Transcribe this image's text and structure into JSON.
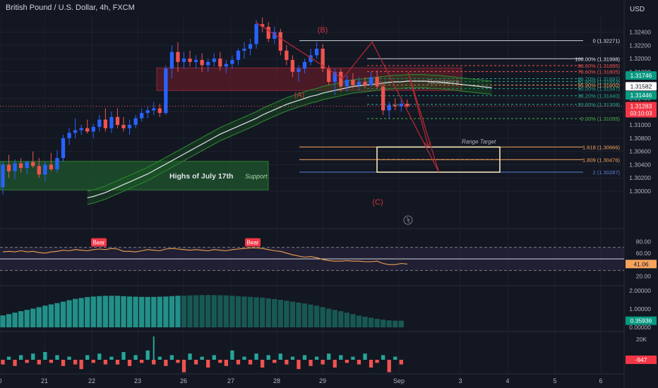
{
  "header": {
    "symbol_title": "British Pound / U.S. Dollar, 4h, FXCM",
    "currency": "USD"
  },
  "colors": {
    "background": "#131722",
    "up": "#2962ff",
    "down": "#ef5350",
    "grid": "#1e222d",
    "axis_text": "#b2b5be",
    "fib_green": "#22ab94",
    "fib_red": "#ef5350",
    "ext_orange": "#f7a35c",
    "wave_red": "#b22833",
    "support_green": "#1b5e20",
    "resistance_red": "#7a1f2b",
    "rsi_line": "#f0a050",
    "hist_teal": "#26a69a",
    "hist_dark": "#1b6f64",
    "vol_up": "#26a69a",
    "vol_down": "#ef5350"
  },
  "chart_data": [
    {
      "type": "candlestick",
      "name": "main",
      "y_axis": {
        "min": 1.295,
        "max": 1.3265,
        "ticks": [
          "1.32400",
          "1.32200",
          "1.32000",
          "1.31800",
          "1.31600",
          "1.31400",
          "1.31200",
          "1.31000",
          "1.30800",
          "1.30600",
          "1.30400",
          "1.30200",
          "1.30000"
        ]
      },
      "x_axis": {
        "ticks": [
          "0",
          "21",
          "22",
          "23",
          "26",
          "27",
          "28",
          "29",
          "Sep",
          "3",
          "4",
          "5",
          "6"
        ]
      },
      "candles": [
        [
          1.3006,
          1.3045,
          1.2995,
          1.304
        ],
        [
          1.304,
          1.3055,
          1.302,
          1.303
        ],
        [
          1.303,
          1.3048,
          1.3018,
          1.3042
        ],
        [
          1.3042,
          1.305,
          1.3028,
          1.3035
        ],
        [
          1.3035,
          1.3046,
          1.3025,
          1.3044
        ],
        [
          1.3044,
          1.306,
          1.3035,
          1.3038
        ],
        [
          1.3038,
          1.305,
          1.302,
          1.3025
        ],
        [
          1.3025,
          1.3045,
          1.3015,
          1.304
        ],
        [
          1.304,
          1.3058,
          1.303,
          1.3033
        ],
        [
          1.3033,
          1.3062,
          1.3028,
          1.305
        ],
        [
          1.305,
          1.3085,
          1.3045,
          1.308
        ],
        [
          1.308,
          1.3095,
          1.307,
          1.3088
        ],
        [
          1.3088,
          1.311,
          1.308,
          1.3092
        ],
        [
          1.3092,
          1.31,
          1.3085,
          1.3095
        ],
        [
          1.3095,
          1.3108,
          1.3087,
          1.309
        ],
        [
          1.309,
          1.3102,
          1.308,
          1.3097
        ],
        [
          1.3097,
          1.3115,
          1.309,
          1.3108
        ],
        [
          1.3108,
          1.3125,
          1.309,
          1.3095
        ],
        [
          1.3095,
          1.312,
          1.3088,
          1.3112
        ],
        [
          1.3112,
          1.3125,
          1.3095,
          1.31
        ],
        [
          1.31,
          1.3112,
          1.309,
          1.3095
        ],
        [
          1.3095,
          1.3108,
          1.3085,
          1.31
        ],
        [
          1.31,
          1.3115,
          1.3095,
          1.311
        ],
        [
          1.311,
          1.3125,
          1.3105,
          1.3118
        ],
        [
          1.3118,
          1.3128,
          1.311,
          1.3122
        ],
        [
          1.3122,
          1.3135,
          1.3115,
          1.3125
        ],
        [
          1.3125,
          1.3132,
          1.3112,
          1.3118
        ],
        [
          1.3118,
          1.319,
          1.3115,
          1.3185
        ],
        [
          1.3185,
          1.322,
          1.317,
          1.321
        ],
        [
          1.321,
          1.3225,
          1.318,
          1.3195
        ],
        [
          1.3195,
          1.321,
          1.3185,
          1.32
        ],
        [
          1.32,
          1.3212,
          1.3188,
          1.3195
        ],
        [
          1.3195,
          1.3205,
          1.3185,
          1.3198
        ],
        [
          1.3198,
          1.3208,
          1.318,
          1.319
        ],
        [
          1.319,
          1.32,
          1.318,
          1.3195
        ],
        [
          1.3195,
          1.3208,
          1.3188,
          1.32
        ],
        [
          1.32,
          1.321,
          1.3182,
          1.3188
        ],
        [
          1.3188,
          1.3198,
          1.3178,
          1.3192
        ],
        [
          1.3192,
          1.3205,
          1.3185,
          1.3198
        ],
        [
          1.3198,
          1.3215,
          1.319,
          1.3212
        ],
        [
          1.3212,
          1.3225,
          1.32,
          1.3215
        ],
        [
          1.3215,
          1.323,
          1.3205,
          1.3222
        ],
        [
          1.3222,
          1.3258,
          1.3215,
          1.3252
        ],
        [
          1.3252,
          1.3262,
          1.324,
          1.3248
        ],
        [
          1.3248,
          1.3255,
          1.3225,
          1.323
        ],
        [
          1.323,
          1.3248,
          1.3222,
          1.324
        ],
        [
          1.324,
          1.3245,
          1.3205,
          1.3212
        ],
        [
          1.3212,
          1.322,
          1.319,
          1.3198
        ],
        [
          1.3198,
          1.3205,
          1.3172,
          1.318
        ],
        [
          1.318,
          1.319,
          1.3165,
          1.3185
        ],
        [
          1.3185,
          1.32,
          1.3178,
          1.3195
        ],
        [
          1.3195,
          1.3215,
          1.319,
          1.3205
        ],
        [
          1.3205,
          1.3225,
          1.32,
          1.3215
        ],
        [
          1.3215,
          1.3222,
          1.318,
          1.3185
        ],
        [
          1.3185,
          1.319,
          1.316,
          1.3165
        ],
        [
          1.3165,
          1.3185,
          1.3145,
          1.318
        ],
        [
          1.318,
          1.3185,
          1.315,
          1.3158
        ],
        [
          1.3158,
          1.3175,
          1.315,
          1.3168
        ],
        [
          1.3168,
          1.3178,
          1.3155,
          1.316
        ],
        [
          1.316,
          1.3172,
          1.3152,
          1.3165
        ],
        [
          1.3165,
          1.3172,
          1.3155,
          1.316
        ],
        [
          1.316,
          1.318,
          1.3158,
          1.3172
        ],
        [
          1.3172,
          1.3182,
          1.3155,
          1.3158
        ],
        [
          1.3158,
          1.3165,
          1.3115,
          1.3122
        ],
        [
          1.3122,
          1.3135,
          1.311,
          1.313
        ],
        [
          1.313,
          1.314,
          1.3122,
          1.3128
        ],
        [
          1.3128,
          1.3138,
          1.312,
          1.3132
        ],
        [
          1.3132,
          1.3138,
          1.3126,
          1.3128
        ]
      ],
      "moving_averages": {
        "mid": [
          1.299,
          1.2992,
          1.2995,
          1.2998,
          1.3002,
          1.3006,
          1.301,
          1.3014,
          1.3018,
          1.3022,
          1.3026,
          1.3031,
          1.3036,
          1.3041,
          1.3046,
          1.3051,
          1.3056,
          1.3061,
          1.3066,
          1.3071,
          1.3076,
          1.3081,
          1.3086,
          1.309,
          1.3094,
          1.3098,
          1.3102,
          1.3106,
          1.311,
          1.3115,
          1.3119,
          1.3123,
          1.3127,
          1.3131,
          1.3134,
          1.3137,
          1.314,
          1.3143,
          1.3145,
          1.3148,
          1.315,
          1.3152,
          1.3154,
          1.3156,
          1.3158,
          1.3159,
          1.316,
          1.3161,
          1.3162,
          1.3163,
          1.3164,
          1.3165,
          1.3165,
          1.3166,
          1.3166,
          1.3166,
          1.3166,
          1.3165,
          1.3165,
          1.3164,
          1.3163,
          1.3162,
          1.3161,
          1.316,
          1.3159,
          1.3158,
          1.3157,
          1.3156
        ],
        "band_offset": 0.001
      },
      "zones": [
        {
          "label": "Highs of July 17th",
          "tag": "Support",
          "top": 1.3045,
          "bottom": 1.3002,
          "x0": 0,
          "x1": 25
        },
        {
          "label": "",
          "tag": "Resistance",
          "top": 1.3186,
          "bottom": 1.3152,
          "x0": 15,
          "x1": 67
        }
      ],
      "fib_retracement": {
        "start": 1.32271,
        "end": 1.30287,
        "levels": [
          {
            "label": "0 (1.32271)",
            "value": 1.32271,
            "color": "#d1d4dc"
          },
          {
            "label": "100.00% (1.31998)",
            "value": 1.31998,
            "color": "#d1d4dc"
          },
          {
            "label": "88.60% (1.31895)",
            "value": 1.31895,
            "color": "#ef5350"
          },
          {
            "label": "78.60% (1.31805)",
            "value": 1.31805,
            "color": "#ef5350"
          },
          {
            "label": "66.70% (1.31697)",
            "value": 1.31697,
            "color": "#22ab94"
          },
          {
            "label": "61.80% (1.31653)",
            "value": 1.31653,
            "color": "#22ab94"
          },
          {
            "label": "55.90% (1.31600)",
            "value": 1.316,
            "color": "#f7a35c"
          },
          {
            "label": "50.00% (1.31547)",
            "value": 1.31547,
            "color": "#22ab94"
          },
          {
            "label": "38.20% (1.31440)",
            "value": 1.3144,
            "color": "#22ab94"
          },
          {
            "label": "23.60% (1.31308)",
            "value": 1.31308,
            "color": "#22ab94"
          },
          {
            "label": "0.00% (1.31095)",
            "value": 1.31095,
            "color": "#4caf50"
          }
        ]
      },
      "fib_extension": [
        {
          "label": "1.618 (1.30666)",
          "value": 1.30666,
          "color": "#f7a35c"
        },
        {
          "label": "1.809 (1.30476)",
          "value": 1.30476,
          "color": "#f7a35c"
        },
        {
          "label": "2 (1.30287)",
          "value": 1.30287,
          "color": "#5b7fd6"
        }
      ],
      "range_target": {
        "label": "Range Target",
        "top": 1.30666,
        "bottom": 1.30287
      },
      "waves": [
        {
          "label": "(A)",
          "x": 57,
          "y": 1.3162
        },
        {
          "label": "(B)",
          "x": 62,
          "y": 1.3225
        },
        {
          "label": "(C)",
          "x": 72,
          "y": 1.3026
        }
      ],
      "badges": [
        {
          "label": "1.31746",
          "value": 1.31746,
          "color": "#089981"
        },
        {
          "label": "1.31582",
          "value": 1.31582,
          "color": "#ffffff"
        },
        {
          "label": "1.31446",
          "value": 1.31446,
          "color": "#089981"
        },
        {
          "label": "1.31283",
          "sub": "03:10:03",
          "value": 1.31283,
          "color": "#f23645"
        }
      ]
    },
    {
      "type": "line",
      "name": "rsi",
      "y_axis": {
        "ticks": [
          "80.00",
          "60.00",
          "20.00"
        ]
      },
      "values": [
        62,
        63,
        62,
        64,
        62,
        63,
        61,
        60,
        62,
        63,
        65,
        64,
        66,
        65,
        64,
        66,
        67,
        66,
        68,
        67,
        63,
        63,
        62,
        64,
        66,
        65,
        64,
        67,
        68,
        67,
        66,
        65,
        66,
        65,
        64,
        66,
        65,
        64,
        66,
        67,
        68,
        69,
        69,
        68,
        66,
        64,
        63,
        60,
        57,
        55,
        53,
        54,
        52,
        49,
        47,
        46,
        46,
        47,
        46,
        46,
        45,
        45,
        46,
        42,
        40,
        40,
        42,
        41
      ],
      "current_label": "41.06",
      "badges": [
        "Bear",
        "Bear"
      ]
    },
    {
      "type": "bar",
      "name": "oscillator",
      "y_axis": {
        "ticks": [
          "2.00000",
          "1.00000",
          "0.00000"
        ]
      },
      "values": [
        0.65,
        0.72,
        0.8,
        0.88,
        0.95,
        1.02,
        1.1,
        1.18,
        1.25,
        1.32,
        1.4,
        1.48,
        1.55,
        1.6,
        1.65,
        1.68,
        1.7,
        1.72,
        1.72,
        1.72,
        1.7,
        1.68,
        1.67,
        1.66,
        1.66,
        1.66,
        1.67,
        1.68,
        1.7,
        1.72,
        1.73,
        1.74,
        1.75,
        1.76,
        1.76,
        1.76,
        1.75,
        1.74,
        1.72,
        1.7,
        1.68,
        1.66,
        1.64,
        1.62,
        1.58,
        1.54,
        1.5,
        1.45,
        1.4,
        1.35,
        1.3,
        1.24,
        1.18,
        1.1,
        1.02,
        0.95,
        0.88,
        0.8,
        0.72,
        0.64,
        0.58,
        0.52,
        0.46,
        0.42,
        0.38,
        0.36,
        0.36
      ],
      "current_label": "0.35936"
    },
    {
      "type": "bar",
      "name": "volume_delta",
      "y_axis": {
        "ticks": [
          "20K"
        ]
      },
      "values": [
        -3,
        2,
        -4,
        3,
        -2,
        4,
        -3,
        5,
        -2,
        3,
        -4,
        2,
        -3,
        -6,
        3,
        -2,
        4,
        -3,
        2,
        -3,
        5,
        -4,
        3,
        -2,
        6,
        -3,
        2,
        -4,
        3,
        -2,
        -8,
        4,
        -3,
        2,
        -5,
        3,
        -2,
        -4,
        6,
        -3,
        2,
        -3,
        4,
        -5,
        3,
        -2,
        4,
        -3,
        2,
        -6,
        3,
        -4,
        2,
        -3,
        4,
        -5,
        3,
        -2,
        2,
        -3,
        4,
        -5,
        -2,
        3,
        -8,
        2,
        -3
      ],
      "current_label": "-947"
    }
  ]
}
